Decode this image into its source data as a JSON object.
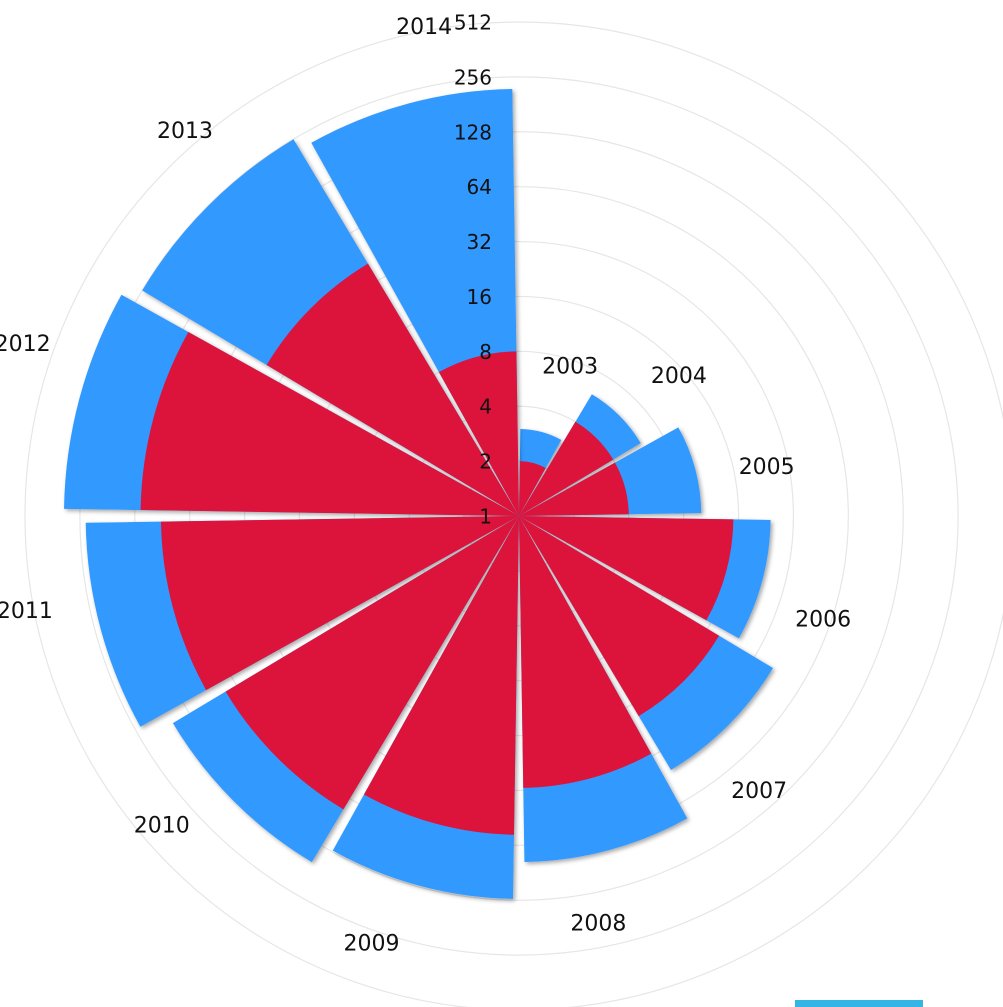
{
  "chart_data": {
    "type": "polar",
    "categories": [
      "2003",
      "2004",
      "2005",
      "2006",
      "2007",
      "2008",
      "2009",
      "2010",
      "2011",
      "2012",
      "2013",
      "2014"
    ],
    "series": [
      {
        "color": "#3399ff",
        "values": [
          3,
          6,
          10,
          24,
          42,
          79,
          126,
          163,
          238,
          313,
          256,
          220
        ]
      },
      {
        "color": "#dc143c",
        "values": [
          2,
          4,
          4,
          15,
          19,
          31,
          56,
          75,
          92,
          119,
          41,
          8
        ]
      }
    ],
    "log": true,
    "ylim": [
      1,
      512
    ],
    "yticks": [
      1,
      2,
      4,
      8,
      16,
      32,
      64,
      128,
      256,
      512
    ],
    "grid": true
  }
}
